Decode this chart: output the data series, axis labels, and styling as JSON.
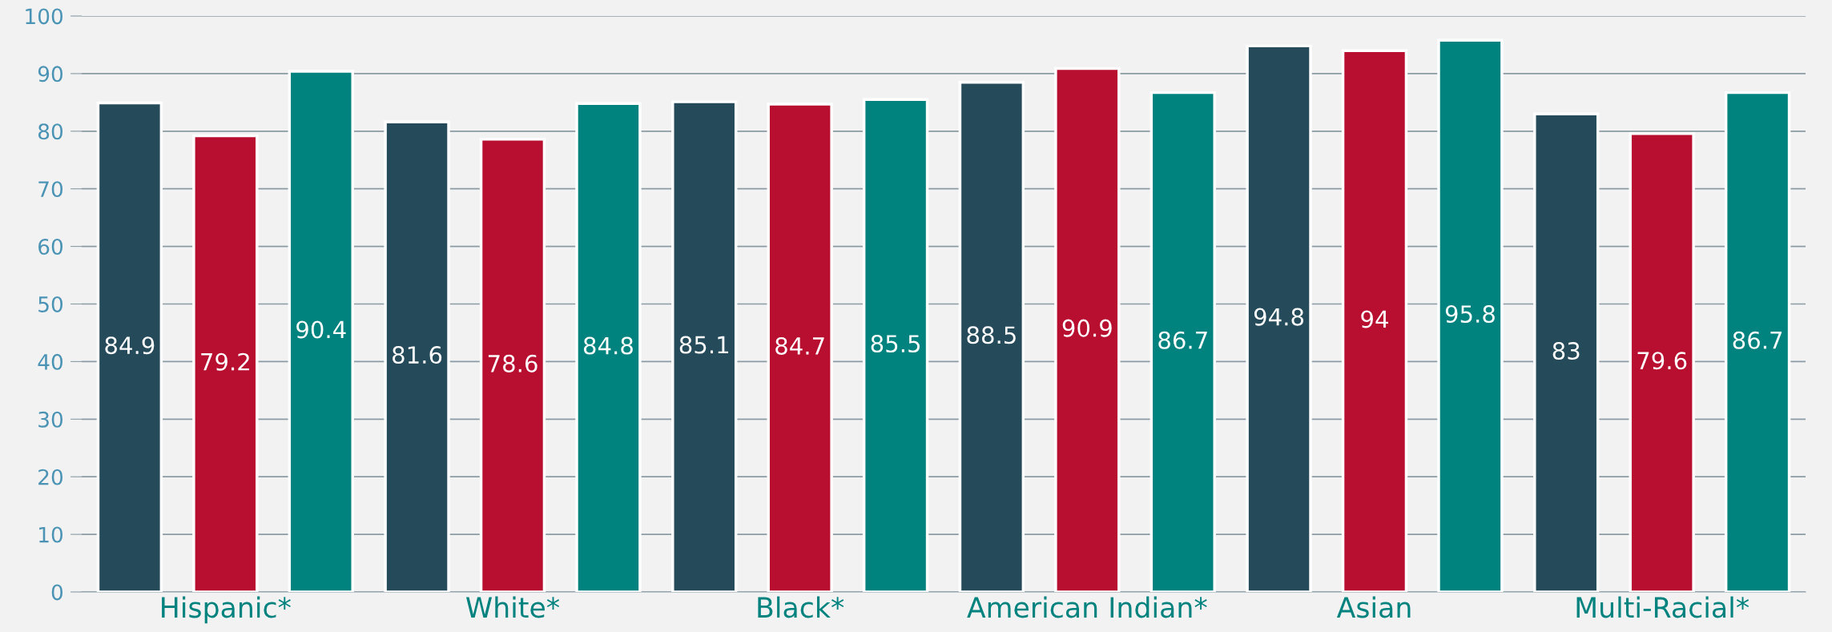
{
  "chart_data": {
    "type": "bar",
    "categories": [
      "Hispanic*",
      "White*",
      "Black*",
      "American Indian*",
      "Asian",
      "Multi-Racial*"
    ],
    "series": [
      {
        "color": "#254b5b",
        "values": [
          84.9,
          81.6,
          85.1,
          88.5,
          94.8,
          83
        ]
      },
      {
        "color": "#b80e2f",
        "values": [
          79.2,
          78.6,
          84.7,
          90.9,
          94,
          79.6
        ]
      },
      {
        "color": "#00827e",
        "values": [
          90.4,
          84.8,
          85.5,
          86.7,
          95.8,
          86.7
        ]
      }
    ],
    "ylim": [
      0,
      100
    ],
    "yticks": [
      0,
      10,
      20,
      30,
      40,
      50,
      60,
      70,
      80,
      90,
      100
    ],
    "grid": "y",
    "data_labels": true
  }
}
